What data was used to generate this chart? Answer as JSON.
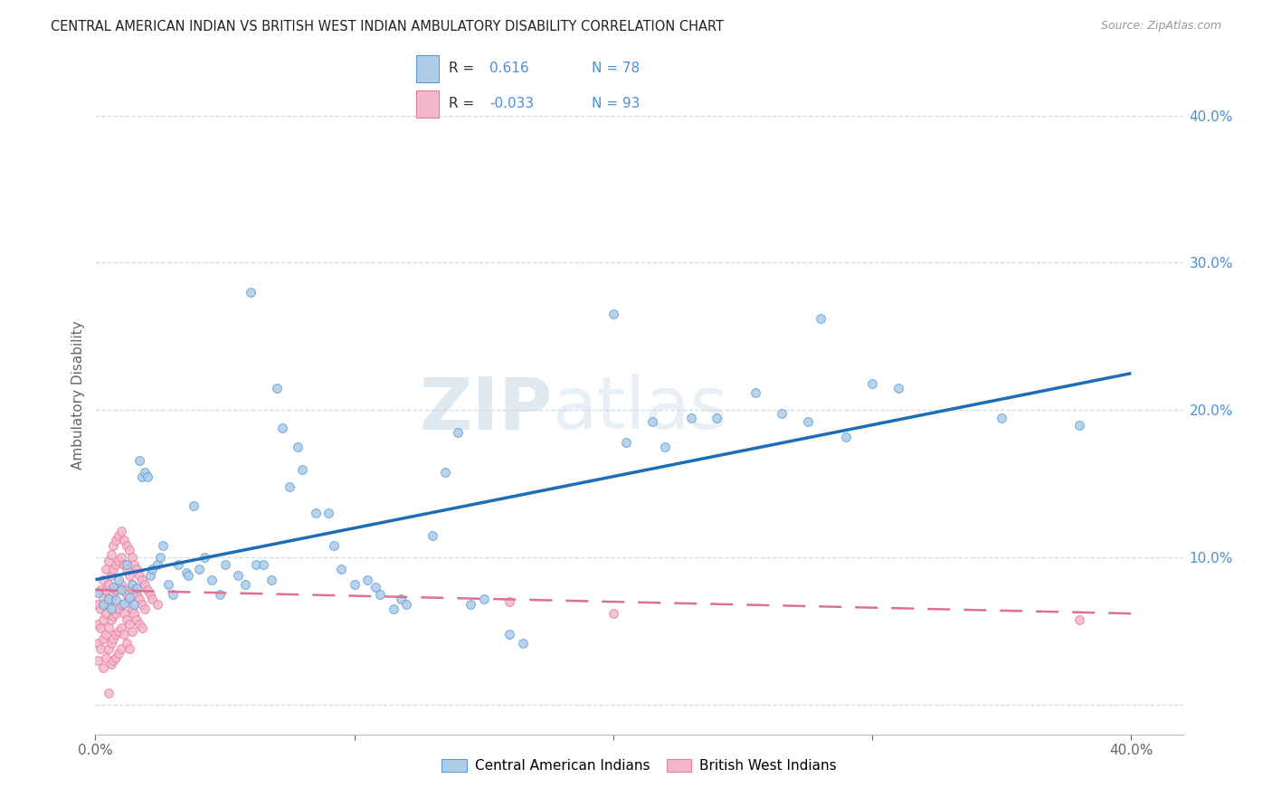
{
  "title": "CENTRAL AMERICAN INDIAN VS BRITISH WEST INDIAN AMBULATORY DISABILITY CORRELATION CHART",
  "source": "Source: ZipAtlas.com",
  "ylabel": "Ambulatory Disability",
  "xlim": [
    0.0,
    0.42
  ],
  "ylim": [
    -0.02,
    0.44
  ],
  "xticks": [
    0.0,
    0.1,
    0.2,
    0.3,
    0.4
  ],
  "yticks": [
    0.0,
    0.1,
    0.2,
    0.3,
    0.4
  ],
  "xticklabels": [
    "0.0%",
    "",
    "",
    "",
    "40.0%"
  ],
  "right_yticklabels": [
    "",
    "10.0%",
    "20.0%",
    "30.0%",
    "40.0%"
  ],
  "blue_R": 0.616,
  "blue_N": 78,
  "pink_R": -0.033,
  "pink_N": 93,
  "blue_color": "#aecce8",
  "pink_color": "#f5b8cb",
  "blue_edge_color": "#5a9fd4",
  "pink_edge_color": "#e87a9a",
  "blue_line_color": "#1f6eb5",
  "pink_line_color": "#e07090",
  "legend_label_blue": "Central American Indians",
  "legend_label_pink": "British West Indians",
  "watermark": "ZIPatlas",
  "blue_line_x0": 0.0,
  "blue_line_y0": 0.085,
  "blue_line_x1": 0.4,
  "blue_line_y1": 0.225,
  "pink_line_x0": 0.0,
  "pink_line_y0": 0.078,
  "pink_line_x1": 0.4,
  "pink_line_y1": 0.062,
  "blue_points": [
    [
      0.001,
      0.076
    ],
    [
      0.003,
      0.068
    ],
    [
      0.005,
      0.072
    ],
    [
      0.006,
      0.065
    ],
    [
      0.007,
      0.08
    ],
    [
      0.008,
      0.071
    ],
    [
      0.009,
      0.085
    ],
    [
      0.01,
      0.078
    ],
    [
      0.011,
      0.069
    ],
    [
      0.012,
      0.095
    ],
    [
      0.013,
      0.073
    ],
    [
      0.014,
      0.082
    ],
    [
      0.015,
      0.068
    ],
    [
      0.016,
      0.079
    ],
    [
      0.017,
      0.166
    ],
    [
      0.018,
      0.155
    ],
    [
      0.019,
      0.158
    ],
    [
      0.02,
      0.155
    ],
    [
      0.021,
      0.088
    ],
    [
      0.022,
      0.092
    ],
    [
      0.024,
      0.095
    ],
    [
      0.025,
      0.1
    ],
    [
      0.026,
      0.108
    ],
    [
      0.028,
      0.082
    ],
    [
      0.03,
      0.075
    ],
    [
      0.032,
      0.095
    ],
    [
      0.035,
      0.09
    ],
    [
      0.036,
      0.088
    ],
    [
      0.038,
      0.135
    ],
    [
      0.04,
      0.092
    ],
    [
      0.042,
      0.1
    ],
    [
      0.045,
      0.085
    ],
    [
      0.048,
      0.075
    ],
    [
      0.05,
      0.095
    ],
    [
      0.055,
      0.088
    ],
    [
      0.058,
      0.082
    ],
    [
      0.06,
      0.28
    ],
    [
      0.062,
      0.095
    ],
    [
      0.065,
      0.095
    ],
    [
      0.068,
      0.085
    ],
    [
      0.07,
      0.215
    ],
    [
      0.072,
      0.188
    ],
    [
      0.075,
      0.148
    ],
    [
      0.078,
      0.175
    ],
    [
      0.08,
      0.16
    ],
    [
      0.085,
      0.13
    ],
    [
      0.09,
      0.13
    ],
    [
      0.092,
      0.108
    ],
    [
      0.095,
      0.092
    ],
    [
      0.1,
      0.082
    ],
    [
      0.105,
      0.085
    ],
    [
      0.108,
      0.08
    ],
    [
      0.11,
      0.075
    ],
    [
      0.115,
      0.065
    ],
    [
      0.118,
      0.072
    ],
    [
      0.12,
      0.068
    ],
    [
      0.13,
      0.115
    ],
    [
      0.135,
      0.158
    ],
    [
      0.14,
      0.185
    ],
    [
      0.145,
      0.068
    ],
    [
      0.15,
      0.072
    ],
    [
      0.16,
      0.048
    ],
    [
      0.165,
      0.042
    ],
    [
      0.2,
      0.265
    ],
    [
      0.205,
      0.178
    ],
    [
      0.215,
      0.192
    ],
    [
      0.22,
      0.175
    ],
    [
      0.23,
      0.195
    ],
    [
      0.24,
      0.195
    ],
    [
      0.255,
      0.212
    ],
    [
      0.265,
      0.198
    ],
    [
      0.275,
      0.192
    ],
    [
      0.28,
      0.262
    ],
    [
      0.29,
      0.182
    ],
    [
      0.3,
      0.218
    ],
    [
      0.31,
      0.215
    ],
    [
      0.35,
      0.195
    ],
    [
      0.38,
      0.19
    ]
  ],
  "pink_points": [
    [
      0.001,
      0.068
    ],
    [
      0.001,
      0.055
    ],
    [
      0.001,
      0.042
    ],
    [
      0.001,
      0.03
    ],
    [
      0.002,
      0.078
    ],
    [
      0.002,
      0.065
    ],
    [
      0.002,
      0.052
    ],
    [
      0.002,
      0.038
    ],
    [
      0.003,
      0.085
    ],
    [
      0.003,
      0.072
    ],
    [
      0.003,
      0.058
    ],
    [
      0.003,
      0.045
    ],
    [
      0.003,
      0.025
    ],
    [
      0.004,
      0.092
    ],
    [
      0.004,
      0.078
    ],
    [
      0.004,
      0.062
    ],
    [
      0.004,
      0.048
    ],
    [
      0.004,
      0.032
    ],
    [
      0.005,
      0.098
    ],
    [
      0.005,
      0.082
    ],
    [
      0.005,
      0.068
    ],
    [
      0.005,
      0.052
    ],
    [
      0.005,
      0.038
    ],
    [
      0.005,
      0.008
    ],
    [
      0.006,
      0.102
    ],
    [
      0.006,
      0.088
    ],
    [
      0.006,
      0.072
    ],
    [
      0.006,
      0.058
    ],
    [
      0.006,
      0.042
    ],
    [
      0.006,
      0.028
    ],
    [
      0.007,
      0.108
    ],
    [
      0.007,
      0.092
    ],
    [
      0.007,
      0.075
    ],
    [
      0.007,
      0.06
    ],
    [
      0.007,
      0.045
    ],
    [
      0.007,
      0.03
    ],
    [
      0.008,
      0.112
    ],
    [
      0.008,
      0.095
    ],
    [
      0.008,
      0.078
    ],
    [
      0.008,
      0.062
    ],
    [
      0.008,
      0.048
    ],
    [
      0.008,
      0.032
    ],
    [
      0.009,
      0.115
    ],
    [
      0.009,
      0.098
    ],
    [
      0.009,
      0.08
    ],
    [
      0.009,
      0.065
    ],
    [
      0.009,
      0.05
    ],
    [
      0.009,
      0.035
    ],
    [
      0.01,
      0.118
    ],
    [
      0.01,
      0.1
    ],
    [
      0.01,
      0.082
    ],
    [
      0.01,
      0.068
    ],
    [
      0.01,
      0.052
    ],
    [
      0.01,
      0.038
    ],
    [
      0.011,
      0.112
    ],
    [
      0.011,
      0.095
    ],
    [
      0.011,
      0.078
    ],
    [
      0.011,
      0.062
    ],
    [
      0.011,
      0.048
    ],
    [
      0.012,
      0.108
    ],
    [
      0.012,
      0.092
    ],
    [
      0.012,
      0.075
    ],
    [
      0.012,
      0.058
    ],
    [
      0.012,
      0.042
    ],
    [
      0.013,
      0.105
    ],
    [
      0.013,
      0.088
    ],
    [
      0.013,
      0.072
    ],
    [
      0.013,
      0.055
    ],
    [
      0.013,
      0.038
    ],
    [
      0.014,
      0.1
    ],
    [
      0.014,
      0.082
    ],
    [
      0.014,
      0.065
    ],
    [
      0.014,
      0.05
    ],
    [
      0.015,
      0.095
    ],
    [
      0.015,
      0.078
    ],
    [
      0.015,
      0.062
    ],
    [
      0.016,
      0.092
    ],
    [
      0.016,
      0.075
    ],
    [
      0.016,
      0.058
    ],
    [
      0.017,
      0.088
    ],
    [
      0.017,
      0.072
    ],
    [
      0.017,
      0.055
    ],
    [
      0.018,
      0.085
    ],
    [
      0.018,
      0.068
    ],
    [
      0.018,
      0.052
    ],
    [
      0.019,
      0.082
    ],
    [
      0.019,
      0.065
    ],
    [
      0.02,
      0.078
    ],
    [
      0.021,
      0.075
    ],
    [
      0.022,
      0.072
    ],
    [
      0.024,
      0.068
    ],
    [
      0.16,
      0.07
    ],
    [
      0.2,
      0.062
    ],
    [
      0.38,
      0.058
    ]
  ]
}
